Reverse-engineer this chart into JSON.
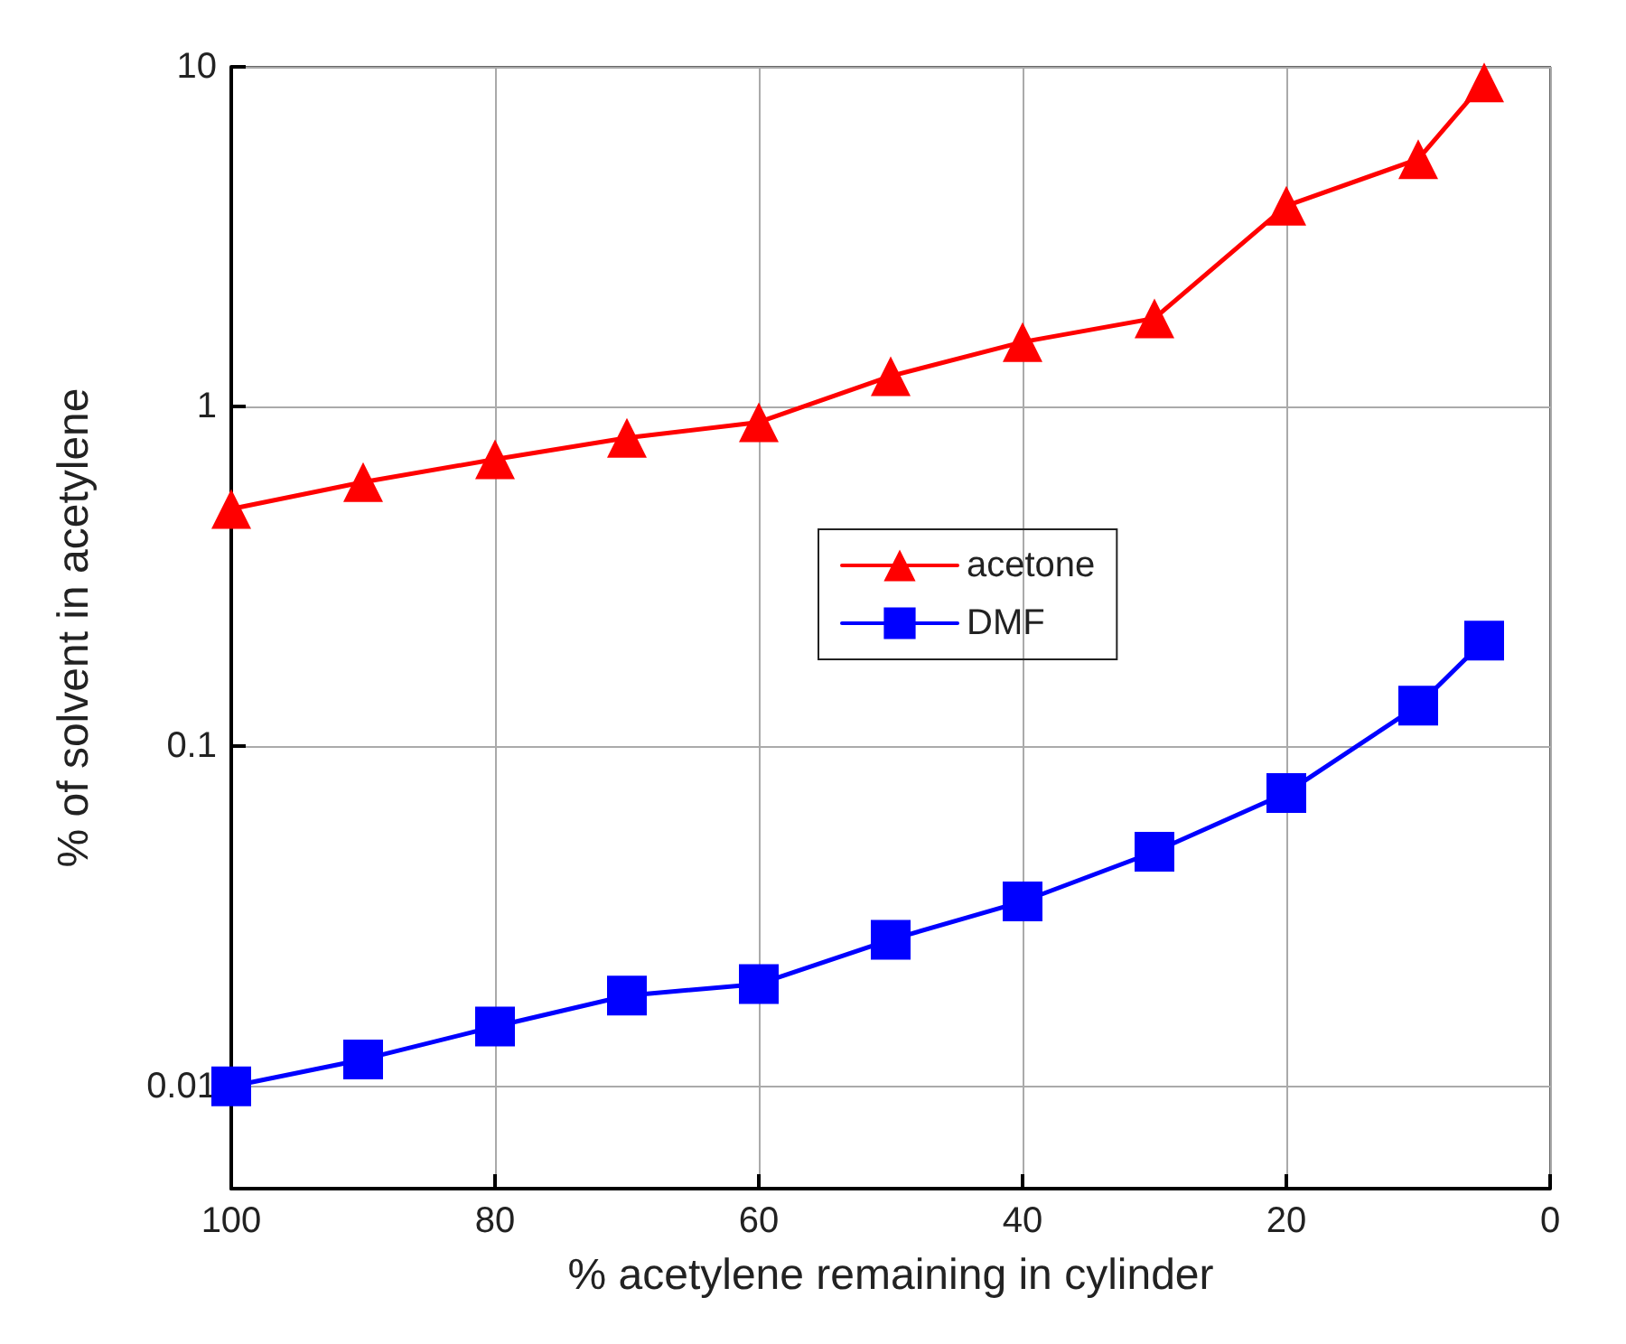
{
  "chart_data": {
    "type": "line",
    "xlabel": "% acetylene remaining in cylinder",
    "ylabel": "% of solvent in acetylene",
    "x": [
      100,
      90,
      80,
      70,
      60,
      50,
      40,
      30,
      20,
      10,
      5
    ],
    "series": [
      {
        "name": "acetone",
        "color": "#ff0000",
        "marker": "triangle",
        "values": [
          0.5,
          0.6,
          0.7,
          0.81,
          0.9,
          1.23,
          1.55,
          1.82,
          3.9,
          5.35,
          9
        ]
      },
      {
        "name": "DMF",
        "color": "#0000ff",
        "marker": "square",
        "values": [
          0.01,
          0.012,
          0.015,
          0.0185,
          0.02,
          0.027,
          0.035,
          0.049,
          0.073,
          0.132,
          0.205
        ]
      }
    ],
    "xlim": [
      100,
      0
    ],
    "xticks": [
      100,
      80,
      60,
      40,
      20,
      0
    ],
    "ylim": [
      0.005,
      10
    ],
    "yticks": [
      0.01,
      0.1,
      1,
      10
    ],
    "log": "y",
    "grid": true,
    "legend": "center",
    "line_style": "solid"
  }
}
